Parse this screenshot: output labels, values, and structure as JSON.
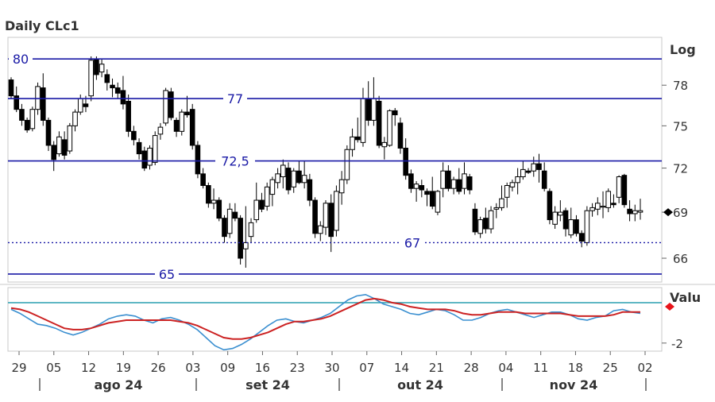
{
  "title": "Daily CLc1",
  "chart_data": [
    {
      "type": "candlestick",
      "title": "Daily CLc1",
      "scale_label": "Log",
      "ylim": [
        64.5,
        81.5
      ],
      "y_ticks": [
        "66",
        "69",
        "72",
        "75",
        "78"
      ],
      "last_value_marker": 69,
      "levels": [
        {
          "label": "80",
          "value": 80,
          "style": "solid"
        },
        {
          "label": "77",
          "value": 77,
          "style": "solid"
        },
        {
          "label": "72,5",
          "value": 72.5,
          "style": "solid"
        },
        {
          "label": "67",
          "value": 67,
          "style": "dotted"
        },
        {
          "label": "65",
          "value": 65,
          "style": "solid"
        }
      ],
      "candles": [
        [
          78.4,
          78.6,
          77.0,
          77.2
        ],
        [
          77.2,
          77.9,
          76.0,
          76.2
        ],
        [
          76.2,
          76.6,
          75.0,
          75.4
        ],
        [
          75.4,
          75.6,
          74.5,
          74.7
        ],
        [
          74.8,
          76.4,
          74.6,
          76.2
        ],
        [
          76.2,
          78.2,
          75.8,
          77.9
        ],
        [
          77.8,
          78.9,
          75.0,
          75.4
        ],
        [
          75.4,
          75.6,
          73.2,
          73.6
        ],
        [
          73.6,
          73.9,
          71.8,
          72.6
        ],
        [
          73.0,
          74.6,
          72.8,
          74.2
        ],
        [
          74.0,
          74.6,
          72.6,
          72.9
        ],
        [
          73.2,
          75.2,
          73.0,
          75.0
        ],
        [
          75.0,
          76.2,
          74.6,
          76.0
        ],
        [
          76.0,
          77.3,
          75.8,
          77.0
        ],
        [
          76.6,
          77.2,
          76.0,
          76.4
        ],
        [
          77.2,
          80.2,
          76.8,
          79.9
        ],
        [
          80.0,
          80.2,
          78.4,
          78.8
        ],
        [
          79.0,
          80.0,
          78.6,
          79.6
        ],
        [
          78.8,
          79.2,
          77.6,
          78.2
        ],
        [
          78.0,
          78.5,
          77.1,
          77.8
        ],
        [
          77.8,
          78.2,
          77.0,
          77.4
        ],
        [
          77.6,
          78.7,
          76.2,
          76.6
        ],
        [
          76.8,
          77.3,
          74.2,
          74.6
        ],
        [
          74.6,
          75.0,
          73.6,
          74.0
        ],
        [
          73.8,
          74.1,
          72.6,
          73.0
        ],
        [
          73.2,
          73.5,
          71.8,
          72.0
        ],
        [
          72.2,
          73.6,
          71.9,
          73.4
        ],
        [
          72.4,
          74.6,
          72.2,
          74.3
        ],
        [
          74.4,
          75.2,
          74.0,
          74.9
        ],
        [
          75.2,
          77.8,
          75.0,
          77.6
        ],
        [
          77.5,
          77.8,
          75.4,
          75.6
        ],
        [
          75.4,
          75.6,
          74.2,
          74.6
        ],
        [
          74.6,
          76.2,
          74.3,
          76.0
        ],
        [
          76.0,
          77.2,
          75.6,
          75.8
        ],
        [
          76.2,
          76.6,
          73.3,
          73.6
        ],
        [
          73.6,
          73.9,
          71.3,
          71.6
        ],
        [
          71.6,
          72.0,
          70.6,
          70.8
        ],
        [
          70.8,
          71.0,
          69.3,
          69.6
        ],
        [
          69.6,
          70.6,
          69.2,
          69.8
        ],
        [
          69.8,
          70.0,
          68.4,
          68.6
        ],
        [
          68.6,
          68.8,
          67.0,
          67.4
        ],
        [
          67.6,
          69.6,
          67.3,
          69.2
        ],
        [
          69.0,
          69.6,
          68.4,
          68.6
        ],
        [
          68.6,
          68.8,
          65.6,
          66.0
        ],
        [
          66.6,
          69.4,
          65.4,
          67.0
        ],
        [
          67.4,
          68.6,
          67.0,
          68.3
        ],
        [
          68.5,
          71.0,
          68.3,
          69.8
        ],
        [
          69.8,
          70.3,
          69.0,
          69.2
        ],
        [
          69.4,
          71.0,
          69.1,
          70.7
        ],
        [
          70.2,
          71.4,
          69.4,
          71.2
        ],
        [
          71.0,
          72.0,
          70.6,
          71.6
        ],
        [
          71.4,
          72.6,
          70.6,
          72.2
        ],
        [
          72.0,
          72.4,
          70.2,
          70.5
        ],
        [
          70.7,
          72.0,
          70.3,
          71.8
        ],
        [
          71.8,
          72.5,
          70.9,
          71.0
        ],
        [
          71.0,
          72.5,
          70.6,
          71.5
        ],
        [
          71.2,
          71.6,
          69.4,
          69.8
        ],
        [
          69.8,
          70.0,
          67.3,
          67.6
        ],
        [
          67.6,
          68.4,
          67.1,
          68.1
        ],
        [
          68.0,
          69.8,
          67.5,
          69.6
        ],
        [
          69.6,
          70.2,
          66.4,
          67.4
        ],
        [
          67.8,
          70.8,
          67.4,
          70.4
        ],
        [
          70.3,
          71.8,
          69.5,
          71.2
        ],
        [
          71.2,
          73.6,
          70.9,
          73.3
        ],
        [
          73.3,
          74.8,
          72.8,
          74.2
        ],
        [
          74.2,
          75.6,
          73.8,
          74.0
        ],
        [
          73.8,
          77.8,
          73.5,
          77.0
        ],
        [
          77.0,
          78.3,
          75.0,
          75.4
        ],
        [
          75.4,
          78.6,
          75.0,
          77.0
        ],
        [
          76.8,
          77.2,
          73.4,
          73.6
        ],
        [
          73.5,
          74.2,
          72.6,
          73.8
        ],
        [
          73.6,
          76.2,
          73.5,
          76.1
        ],
        [
          76.1,
          76.3,
          75.0,
          75.8
        ],
        [
          75.2,
          75.6,
          73.0,
          73.4
        ],
        [
          73.4,
          74.1,
          71.2,
          71.5
        ],
        [
          71.6,
          71.9,
          70.3,
          70.6
        ],
        [
          70.6,
          71.1,
          69.7,
          70.9
        ],
        [
          70.8,
          71.2,
          70.0,
          70.5
        ],
        [
          70.4,
          70.6,
          69.4,
          70.2
        ],
        [
          70.4,
          71.4,
          69.2,
          69.4
        ],
        [
          69.0,
          70.5,
          68.8,
          70.4
        ],
        [
          70.6,
          72.4,
          70.0,
          71.8
        ],
        [
          71.8,
          72.2,
          70.4,
          70.6
        ],
        [
          70.6,
          71.4,
          70.2,
          71.2
        ],
        [
          71.2,
          72.0,
          70.2,
          70.4
        ],
        [
          70.6,
          72.4,
          70.2,
          71.6
        ],
        [
          71.4,
          71.6,
          70.2,
          70.5
        ],
        [
          69.2,
          69.6,
          67.5,
          67.7
        ],
        [
          67.6,
          68.7,
          67.3,
          68.5
        ],
        [
          68.6,
          69.3,
          67.6,
          67.9
        ],
        [
          67.9,
          69.4,
          67.6,
          69.1
        ],
        [
          69.2,
          69.6,
          68.6,
          69.3
        ],
        [
          69.3,
          70.8,
          69.1,
          69.9
        ],
        [
          70.0,
          71.0,
          69.3,
          70.8
        ],
        [
          70.7,
          71.2,
          70.4,
          71.0
        ],
        [
          71.0,
          72.0,
          70.2,
          71.4
        ],
        [
          71.4,
          72.5,
          71.2,
          71.9
        ],
        [
          71.8,
          72.0,
          71.6,
          71.7
        ],
        [
          71.8,
          72.8,
          71.4,
          72.3
        ],
        [
          72.3,
          73.0,
          71.0,
          71.9
        ],
        [
          71.8,
          72.4,
          70.4,
          70.6
        ],
        [
          70.4,
          70.6,
          68.2,
          68.5
        ],
        [
          68.2,
          69.4,
          67.9,
          69.0
        ],
        [
          68.8,
          69.8,
          68.4,
          69.0
        ],
        [
          69.1,
          69.3,
          67.4,
          67.9
        ],
        [
          67.5,
          69.3,
          67.3,
          68.5
        ],
        [
          68.5,
          68.8,
          67.4,
          67.6
        ],
        [
          67.6,
          67.8,
          66.7,
          67.1
        ],
        [
          67.0,
          69.4,
          66.8,
          69.1
        ],
        [
          69.1,
          69.6,
          68.7,
          69.3
        ],
        [
          69.2,
          70.0,
          68.8,
          69.6
        ],
        [
          69.4,
          70.4,
          68.6,
          69.4
        ],
        [
          69.3,
          70.6,
          69.0,
          70.4
        ],
        [
          69.6,
          70.2,
          69.3,
          69.5
        ],
        [
          70.0,
          71.5,
          69.6,
          71.4
        ],
        [
          71.5,
          71.6,
          69.3,
          69.5
        ],
        [
          69.2,
          69.8,
          68.4,
          68.9
        ],
        [
          68.9,
          69.5,
          68.4,
          69.1
        ],
        [
          69.0,
          69.9,
          68.5,
          69.1
        ]
      ],
      "date_ticks": [
        "29",
        "05",
        "12",
        "19",
        "26",
        "03",
        "09",
        "16",
        "23",
        "30",
        "07",
        "14",
        "21",
        "28",
        "04",
        "11",
        "18",
        "25",
        "02"
      ],
      "month_labels": [
        "ago 24",
        "set 24",
        "out 24",
        "nov 24"
      ]
    },
    {
      "type": "line",
      "title": "",
      "scale_label": "Valu",
      "ylim": [
        -2.6,
        2.0
      ],
      "y_ticks": [
        "-2"
      ],
      "reference_level": 1.0,
      "last_value_marker": 0.7,
      "series": [
        {
          "color": "#3a8fd0",
          "values": [
            0.5,
            0.2,
            -0.2,
            -0.6,
            -0.7,
            -0.9,
            -1.2,
            -1.4,
            -1.2,
            -0.9,
            -0.6,
            -0.2,
            0.0,
            0.1,
            0.0,
            -0.3,
            -0.5,
            -0.2,
            -0.1,
            -0.3,
            -0.6,
            -1.0,
            -1.6,
            -2.2,
            -2.5,
            -2.4,
            -2.1,
            -1.7,
            -1.2,
            -0.7,
            -0.3,
            -0.2,
            -0.4,
            -0.5,
            -0.3,
            -0.1,
            0.2,
            0.7,
            1.2,
            1.5,
            1.6,
            1.3,
            0.9,
            0.7,
            0.5,
            0.2,
            0.1,
            0.3,
            0.5,
            0.4,
            0.1,
            -0.3,
            -0.3,
            -0.1,
            0.2,
            0.4,
            0.5,
            0.3,
            0.1,
            -0.1,
            0.1,
            0.3,
            0.3,
            0.1,
            -0.2,
            -0.3,
            -0.1,
            0.0,
            0.4,
            0.5,
            0.3,
            0.2
          ]
        },
        {
          "color": "#cc2222",
          "values": [
            0.6,
            0.5,
            0.3,
            0.0,
            -0.3,
            -0.6,
            -0.9,
            -1.0,
            -1.0,
            -0.9,
            -0.7,
            -0.5,
            -0.4,
            -0.3,
            -0.3,
            -0.3,
            -0.3,
            -0.3,
            -0.3,
            -0.4,
            -0.5,
            -0.7,
            -1.0,
            -1.3,
            -1.6,
            -1.7,
            -1.7,
            -1.6,
            -1.4,
            -1.2,
            -0.9,
            -0.6,
            -0.4,
            -0.4,
            -0.3,
            -0.2,
            0.0,
            0.3,
            0.6,
            0.9,
            1.2,
            1.3,
            1.2,
            1.0,
            0.9,
            0.7,
            0.6,
            0.5,
            0.5,
            0.5,
            0.4,
            0.2,
            0.1,
            0.1,
            0.2,
            0.3,
            0.3,
            0.3,
            0.2,
            0.2,
            0.2,
            0.2,
            0.2,
            0.1,
            0.0,
            0.0,
            0.0,
            0.0,
            0.1,
            0.3,
            0.3,
            0.3
          ]
        }
      ]
    }
  ]
}
